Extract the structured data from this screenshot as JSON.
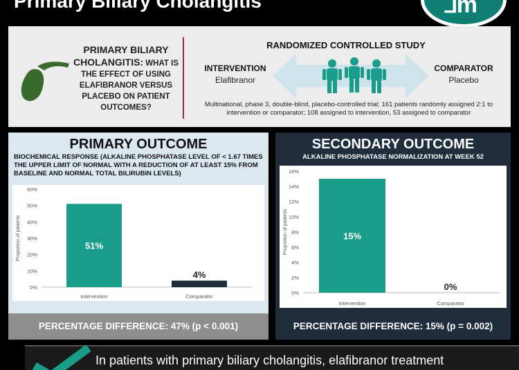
{
  "header": {
    "title": "Primary Biliary Cholangitis"
  },
  "question": {
    "lead": "PRIMARY BILIARY CHOLANGITIS:",
    "rest": "WHAT IS THE EFFECT OF USING ELAFIBRANOR VERSUS PLACEBO ON PATIENT OUTCOMES?"
  },
  "study": {
    "title": "RANDOMIZED CONTROLLED STUDY",
    "intervention_label": "INTERVENTION",
    "intervention_drug": "Elafibranor",
    "comparator_label": "COMPARATOR",
    "comparator_drug": "Placebo",
    "design": "Multinational, phase 3, double-blind, placebo-controlled trial; 161 patients randomly assigned 2:1 to intervention or comparator; 108 assigned to intervention, 53 assigned to comparator"
  },
  "primary": {
    "title": "PRIMARY OUTCOME",
    "subtitle": "BIOCHEMICAL RESPONSE (ALKALINE PHOSPHATASE LEVEL OF < 1.67 TIMES THE UPPER LIMIT OF NORMAL WITH A REDUCTION OF AT LEAST 15% FROM BASELINE AND NORMAL TOTAL BILIRUBIN LEVELS)",
    "difference": "PERCENTAGE DIFFERENCE: 47% (p < 0.001)"
  },
  "secondary": {
    "title": "SECONDARY OUTCOME",
    "subtitle": "ALKALINE PHOSPHATASE NORMALIZATION AT WEEK 52",
    "difference": "PERCENTAGE DIFFERENCE: 15% (p = 0.002)"
  },
  "conclusion": {
    "text": "In patients with primary biliary cholangitis, elafibranor treatment"
  },
  "colors": {
    "teal": "#1a9c8a",
    "navy": "#1f2d3d",
    "arrow": "#cfe3ec",
    "gray": "#8e8e8e"
  },
  "icons": [
    "gallbladder-icon",
    "double-arrow-icon",
    "people-icon",
    "checkmark-icon"
  ],
  "chart_data": [
    {
      "type": "bar",
      "categories": [
        "Intervention",
        "Comparator"
      ],
      "values": [
        51,
        4
      ],
      "data_labels": [
        "51%",
        "4%"
      ],
      "ylabel": "Proportion of patients",
      "ylim": [
        0,
        60
      ],
      "yticks": [
        "0%",
        "10%",
        "20%",
        "30%",
        "40%",
        "50%",
        "60%"
      ],
      "ytick_values": [
        0,
        10,
        20,
        30,
        40,
        50,
        60
      ],
      "colors": [
        "#1a9c8a",
        "#1f2d3d"
      ],
      "grid": false
    },
    {
      "type": "bar",
      "categories": [
        "Intervention",
        "Comparator"
      ],
      "values": [
        15,
        0
      ],
      "data_labels": [
        "15%",
        "0%"
      ],
      "ylabel": "Proportion of patients",
      "ylim": [
        0,
        16
      ],
      "yticks": [
        "0%",
        "2%",
        "4%",
        "6%",
        "8%",
        "10%",
        "12%",
        "14%",
        "16%"
      ],
      "ytick_values": [
        0,
        2,
        4,
        6,
        8,
        10,
        12,
        14,
        16
      ],
      "colors": [
        "#1a9c8a",
        "#1f2d3d"
      ],
      "grid": false
    }
  ]
}
